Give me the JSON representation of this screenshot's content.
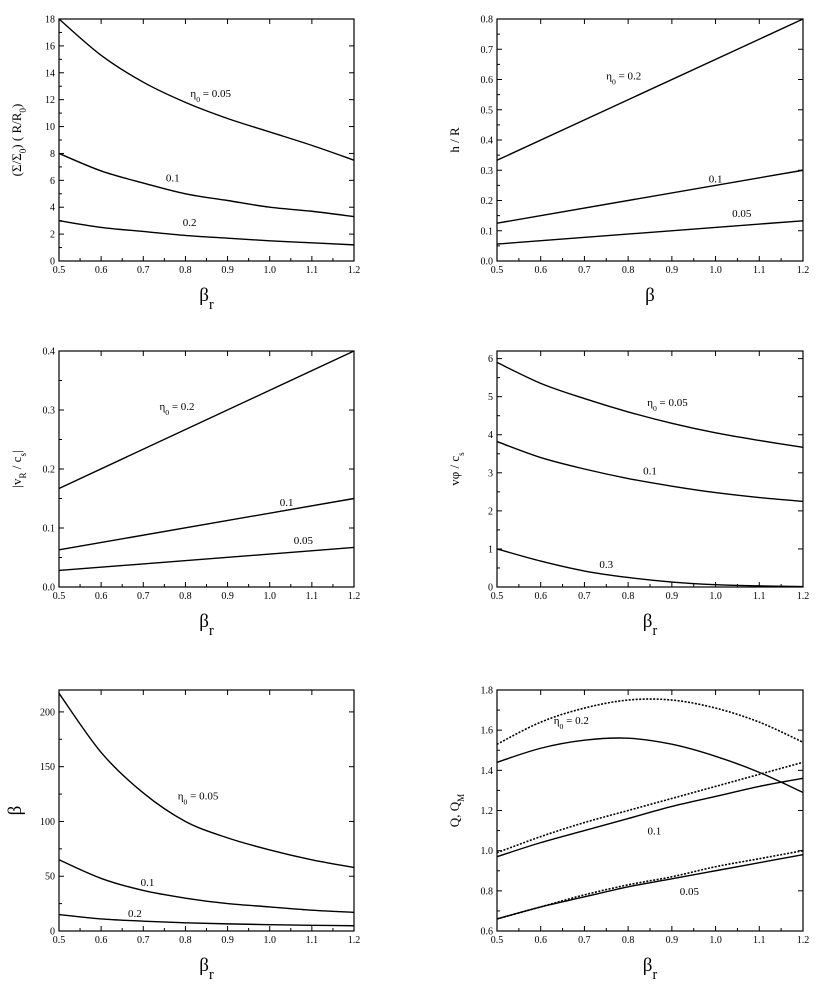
{
  "chart_data": [
    {
      "type": "line",
      "xlabel": "β",
      "xlabel_sub": "r",
      "ylabel": "(Σ/Σ₀) ( R/R₀)",
      "xlim": [
        0.5,
        1.2
      ],
      "ylim": [
        0,
        18
      ],
      "xticks": [
        "0.5",
        "0.6",
        "0.7",
        "0.8",
        "0.9",
        "1.0",
        "1.1",
        "1.2"
      ],
      "yticks": [
        "0",
        "2",
        "4",
        "6",
        "8",
        "10",
        "12",
        "14",
        "16",
        "18"
      ],
      "grid": false,
      "series": [
        {
          "name": "η₀ = 0.05",
          "x": [
            0.5,
            0.6,
            0.7,
            0.8,
            0.9,
            1.0,
            1.1,
            1.2
          ],
          "y": [
            18.0,
            15.3,
            13.3,
            11.8,
            10.6,
            9.6,
            8.6,
            7.5
          ]
        },
        {
          "name": "0.1",
          "x": [
            0.5,
            0.6,
            0.7,
            0.8,
            0.9,
            1.0,
            1.1,
            1.2
          ],
          "y": [
            8.0,
            6.7,
            5.8,
            5.0,
            4.5,
            4.0,
            3.7,
            3.3
          ]
        },
        {
          "name": "0.2",
          "x": [
            0.5,
            0.6,
            0.7,
            0.8,
            0.9,
            1.0,
            1.1,
            1.2
          ],
          "y": [
            3.0,
            2.5,
            2.2,
            1.9,
            1.7,
            1.5,
            1.35,
            1.2
          ]
        }
      ],
      "curve_labels": [
        {
          "text": "η₀ = 0.05",
          "x": 0.86,
          "y": 12.2
        },
        {
          "text": "0.1",
          "x": 0.77,
          "y": 5.9
        },
        {
          "text": "0.2",
          "x": 0.81,
          "y": 2.6
        }
      ]
    },
    {
      "type": "line",
      "xlabel": "β",
      "xlabel_sub": "",
      "ylabel": "h / R",
      "xlim": [
        0.5,
        1.2
      ],
      "ylim": [
        0,
        0.8
      ],
      "xticks": [
        "0.5",
        "0.6",
        "0.7",
        "0.8",
        "0.9",
        "1.0",
        "1.1",
        "1.2"
      ],
      "yticks": [
        "0.0",
        "0.1",
        "0.2",
        "0.3",
        "0.4",
        "0.5",
        "0.6",
        "0.7",
        "0.8"
      ],
      "grid": false,
      "series": [
        {
          "name": "η₀ = 0.2",
          "x": [
            0.5,
            1.2
          ],
          "y": [
            0.333,
            0.8
          ]
        },
        {
          "name": "0.1",
          "x": [
            0.5,
            1.2
          ],
          "y": [
            0.125,
            0.3
          ]
        },
        {
          "name": "0.05",
          "x": [
            0.5,
            1.2
          ],
          "y": [
            0.056,
            0.133
          ]
        }
      ],
      "curve_labels": [
        {
          "text": "η₀ = 0.2",
          "x": 0.79,
          "y": 0.6
        },
        {
          "text": "0.1",
          "x": 1.0,
          "y": 0.26
        },
        {
          "text": "0.05",
          "x": 1.06,
          "y": 0.145
        }
      ]
    },
    {
      "type": "line",
      "xlabel": "β",
      "xlabel_sub": "r",
      "ylabel": "|v_R / c_s|",
      "xlim": [
        0.5,
        1.2
      ],
      "ylim": [
        0,
        0.4
      ],
      "xticks": [
        "0.5",
        "0.6",
        "0.7",
        "0.8",
        "0.9",
        "1.0",
        "1.1",
        "1.2"
      ],
      "yticks": [
        "0.0",
        "0.1",
        "0.2",
        "0.3",
        "0.4"
      ],
      "grid": false,
      "series": [
        {
          "name": "η₀ = 0.2",
          "x": [
            0.5,
            1.2
          ],
          "y": [
            0.167,
            0.4
          ]
        },
        {
          "name": "0.1",
          "x": [
            0.5,
            1.2
          ],
          "y": [
            0.063,
            0.15
          ]
        },
        {
          "name": "0.05",
          "x": [
            0.5,
            1.2
          ],
          "y": [
            0.028,
            0.067
          ]
        }
      ],
      "curve_labels": [
        {
          "text": "η₀ = 0.2",
          "x": 0.78,
          "y": 0.3
        },
        {
          "text": "0.1",
          "x": 1.04,
          "y": 0.137
        },
        {
          "text": "0.05",
          "x": 1.08,
          "y": 0.073
        }
      ]
    },
    {
      "type": "line",
      "xlabel": "β",
      "xlabel_sub": "r",
      "ylabel": "v_φ / c_s",
      "xlim": [
        0.5,
        1.2
      ],
      "ylim": [
        0,
        6.2
      ],
      "xticks": [
        "0.5",
        "0.6",
        "0.7",
        "0.8",
        "0.9",
        "1.0",
        "1.1",
        "1.2"
      ],
      "yticks": [
        "0",
        "1",
        "2",
        "3",
        "4",
        "5",
        "6"
      ],
      "grid": false,
      "series": [
        {
          "name": "η₀ = 0.05",
          "x": [
            0.5,
            0.6,
            0.7,
            0.8,
            0.9,
            1.0,
            1.1,
            1.2
          ],
          "y": [
            5.9,
            5.35,
            4.95,
            4.6,
            4.3,
            4.05,
            3.85,
            3.67
          ]
        },
        {
          "name": "0.1",
          "x": [
            0.5,
            0.6,
            0.7,
            0.8,
            0.9,
            1.0,
            1.1,
            1.2
          ],
          "y": [
            3.82,
            3.4,
            3.1,
            2.85,
            2.65,
            2.48,
            2.35,
            2.25
          ]
        },
        {
          "name": "0.3",
          "x": [
            0.5,
            0.6,
            0.7,
            0.8,
            0.9,
            1.0,
            1.1,
            1.2
          ],
          "y": [
            1.0,
            0.68,
            0.42,
            0.25,
            0.13,
            0.06,
            0.03,
            0.01
          ]
        }
      ],
      "curve_labels": [
        {
          "text": "η₀ = 0.05",
          "x": 0.89,
          "y": 4.75
        },
        {
          "text": "0.1",
          "x": 0.85,
          "y": 2.95
        },
        {
          "text": "0.3",
          "x": 0.75,
          "y": 0.5
        }
      ]
    },
    {
      "type": "line",
      "xlabel": "β",
      "xlabel_sub": "r",
      "ylabel": "β",
      "xlim": [
        0.5,
        1.2
      ],
      "ylim": [
        0,
        220
      ],
      "xticks": [
        "0.5",
        "0.6",
        "0.7",
        "0.8",
        "0.9",
        "1.0",
        "1.1",
        "1.2"
      ],
      "yticks": [
        "0",
        "50",
        "100",
        "150",
        "200"
      ],
      "grid": false,
      "series": [
        {
          "name": "η₀ = 0.05",
          "x": [
            0.5,
            0.6,
            0.7,
            0.8,
            0.9,
            1.0,
            1.1,
            1.2
          ],
          "y": [
            217,
            163,
            126,
            100,
            85,
            74,
            65,
            58
          ]
        },
        {
          "name": "0.1",
          "x": [
            0.5,
            0.6,
            0.7,
            0.8,
            0.9,
            1.0,
            1.1,
            1.2
          ],
          "y": [
            65,
            48,
            37,
            30,
            25,
            22,
            19,
            17
          ]
        },
        {
          "name": "0.2",
          "x": [
            0.5,
            0.6,
            0.7,
            0.8,
            0.9,
            1.0,
            1.1,
            1.2
          ],
          "y": [
            15,
            11,
            9,
            7.5,
            6.5,
            5.8,
            5.2,
            4.8
          ]
        }
      ],
      "curve_labels": [
        {
          "text": "η₀ = 0.05",
          "x": 0.83,
          "y": 120
        },
        {
          "text": "0.1",
          "x": 0.71,
          "y": 41
        },
        {
          "text": "0.2",
          "x": 0.68,
          "y": 13
        }
      ]
    },
    {
      "type": "line",
      "xlabel": "β",
      "xlabel_sub": "r",
      "ylabel": "Q, Q_M",
      "xlim": [
        0.5,
        1.2
      ],
      "ylim": [
        0.6,
        1.8
      ],
      "xticks": [
        "0.5",
        "0.6",
        "0.7",
        "0.8",
        "0.9",
        "1.0",
        "1.1",
        "1.2"
      ],
      "yticks": [
        "0.6",
        "0.8",
        "1.0",
        "1.2",
        "1.4",
        "1.6",
        "1.8"
      ],
      "grid": false,
      "series": [
        {
          "name": "η₀ = 0.2 (Q)",
          "style": "solid",
          "x": [
            0.5,
            0.6,
            0.7,
            0.8,
            0.9,
            1.0,
            1.1,
            1.2
          ],
          "y": [
            1.44,
            1.51,
            1.55,
            1.56,
            1.53,
            1.47,
            1.39,
            1.29
          ]
        },
        {
          "name": "η₀ = 0.2 (Q_M)",
          "style": "dotted",
          "x": [
            0.5,
            0.6,
            0.7,
            0.8,
            0.9,
            1.0,
            1.1,
            1.2
          ],
          "y": [
            1.53,
            1.64,
            1.71,
            1.75,
            1.75,
            1.71,
            1.64,
            1.54
          ]
        },
        {
          "name": "0.1 (Q)",
          "style": "solid",
          "x": [
            0.5,
            0.6,
            0.7,
            0.8,
            0.9,
            1.0,
            1.1,
            1.2
          ],
          "y": [
            0.97,
            1.04,
            1.1,
            1.16,
            1.22,
            1.27,
            1.32,
            1.36
          ]
        },
        {
          "name": "0.1 (Q_M)",
          "style": "dotted",
          "x": [
            0.5,
            0.6,
            0.7,
            0.8,
            0.9,
            1.0,
            1.1,
            1.2
          ],
          "y": [
            0.99,
            1.07,
            1.14,
            1.2,
            1.26,
            1.32,
            1.38,
            1.44
          ]
        },
        {
          "name": "0.05 (Q)",
          "style": "solid",
          "x": [
            0.5,
            0.6,
            0.7,
            0.8,
            0.9,
            1.0,
            1.1,
            1.2
          ],
          "y": [
            0.66,
            0.72,
            0.77,
            0.82,
            0.86,
            0.9,
            0.94,
            0.98
          ]
        },
        {
          "name": "0.05 (Q_M)",
          "style": "dotted",
          "x": [
            0.5,
            0.6,
            0.7,
            0.8,
            0.9,
            1.0,
            1.1,
            1.2
          ],
          "y": [
            0.66,
            0.72,
            0.78,
            0.83,
            0.87,
            0.92,
            0.96,
            1.0
          ]
        }
      ],
      "curve_labels": [
        {
          "text": "η₀ = 0.2",
          "x": 0.67,
          "y": 1.63
        },
        {
          "text": "0.1",
          "x": 0.86,
          "y": 1.08
        },
        {
          "text": "0.05",
          "x": 0.94,
          "y": 0.78
        }
      ]
    }
  ]
}
